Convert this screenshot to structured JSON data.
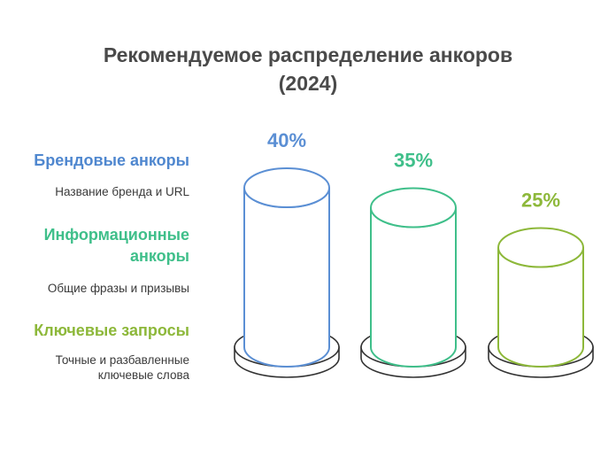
{
  "title_line1": "Рекомендуемое распределение анкоров",
  "title_line2": "(2024)",
  "chart_data": {
    "type": "bar",
    "style": "3d-cylinder",
    "title": "Рекомендуемое распределение анкоров (2024)",
    "categories": [
      "Брендовые анкоры",
      "Информационные анкоры",
      "Ключевые запросы"
    ],
    "values": [
      40,
      35,
      25
    ],
    "value_labels": [
      "40%",
      "35%",
      "25%"
    ],
    "colors": [
      "#5b8fd4",
      "#3fbf8a",
      "#8db83a"
    ],
    "legend_placement": "left"
  },
  "legend": [
    {
      "title_lines": [
        "Брендовые анкоры"
      ],
      "description_lines": [
        "Название бренда и URL"
      ],
      "color": "#4f87cf"
    },
    {
      "title_lines": [
        "Информационные",
        "анкоры"
      ],
      "description_lines": [
        "Общие фразы и призывы"
      ],
      "color": "#3fbf8a"
    },
    {
      "title_lines": [
        "Ключевые запросы"
      ],
      "description_lines": [
        "Точные и разбавленные",
        "ключевые слова"
      ],
      "color": "#8db83a"
    }
  ]
}
